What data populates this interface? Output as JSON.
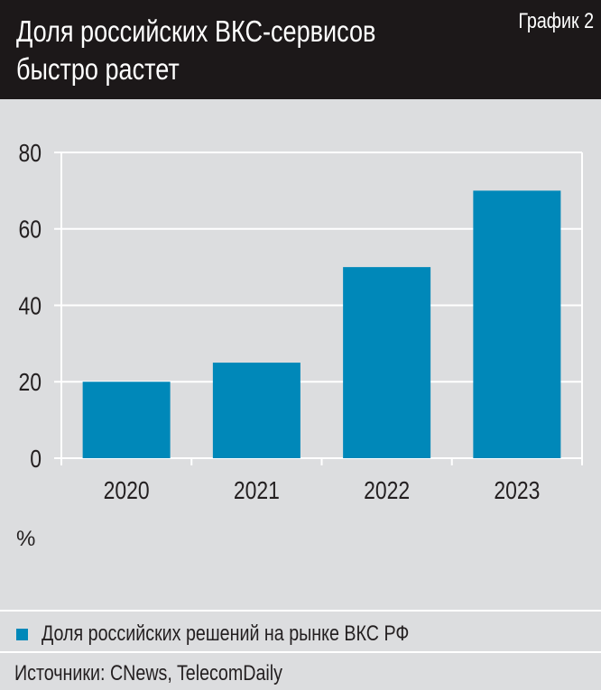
{
  "header": {
    "title": "Доля российских ВКС-сервисов\nбыстро растет",
    "label": "График 2"
  },
  "chart_data": {
    "type": "bar",
    "categories": [
      "2020",
      "2021",
      "2022",
      "2023"
    ],
    "series": [
      {
        "name": "Доля российских решений на рынке ВКС РФ",
        "values": [
          20,
          25,
          50,
          70
        ]
      }
    ],
    "ylabel": "%",
    "ylim": [
      0,
      80
    ],
    "yticks": [
      "0",
      "20",
      "40",
      "60",
      "80"
    ],
    "grid": true,
    "legend_placement": "bottom"
  },
  "colors": {
    "bar": "#0088b9",
    "header_bg": "#1c1819",
    "background": "#dcdddf"
  },
  "source": "Источники: CNews, TelecomDaily"
}
